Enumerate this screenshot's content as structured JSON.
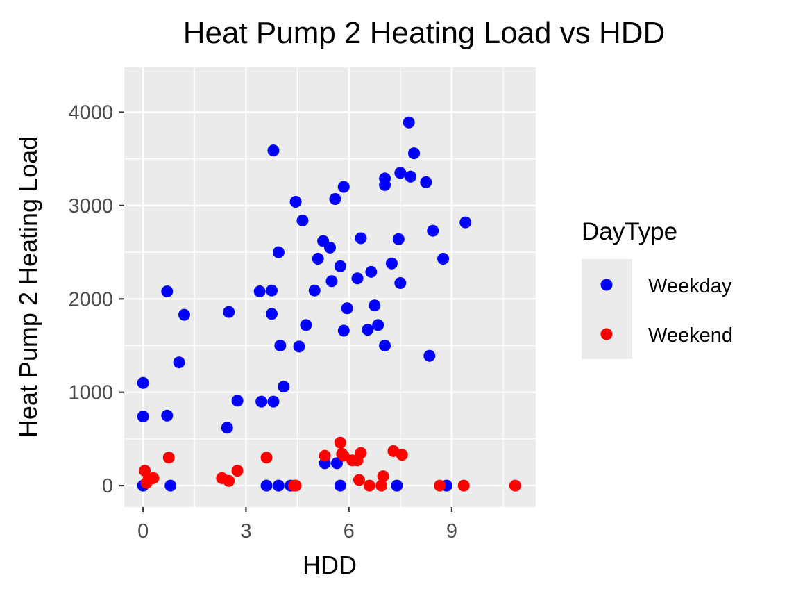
{
  "chart_data": {
    "type": "scatter",
    "title": "Heat Pump 2 Heating Load vs HDD",
    "xlabel": "HDD",
    "ylabel": "Heat Pump 2 Heating Load",
    "xlim": [
      -0.55,
      11.45
    ],
    "ylim": [
      -230,
      4480
    ],
    "x_ticks": [
      0,
      3,
      6,
      9
    ],
    "x_tick_labels": [
      "0",
      "3",
      "6",
      "9"
    ],
    "y_ticks": [
      0,
      1000,
      2000,
      3000,
      4000
    ],
    "y_tick_labels": [
      "0",
      "1000",
      "2000",
      "3000",
      "4000"
    ],
    "grid": true,
    "background": "#EBEBEB",
    "legend": {
      "title": "DayType",
      "position": "right"
    },
    "series": [
      {
        "name": "Weekday",
        "color": "#0000FF",
        "points": [
          [
            0.0,
            1100
          ],
          [
            0.0,
            740
          ],
          [
            0.0,
            0
          ],
          [
            0.7,
            750
          ],
          [
            0.7,
            2080
          ],
          [
            0.8,
            0
          ],
          [
            1.05,
            1320
          ],
          [
            1.2,
            1830
          ],
          [
            2.45,
            620
          ],
          [
            2.5,
            1860
          ],
          [
            2.75,
            910
          ],
          [
            3.4,
            2080
          ],
          [
            3.45,
            900
          ],
          [
            3.6,
            0
          ],
          [
            3.75,
            2090
          ],
          [
            3.75,
            1840
          ],
          [
            3.8,
            900
          ],
          [
            3.8,
            3590
          ],
          [
            3.95,
            0
          ],
          [
            3.95,
            2500
          ],
          [
            4.0,
            1500
          ],
          [
            4.1,
            1060
          ],
          [
            4.3,
            0
          ],
          [
            4.45,
            3040
          ],
          [
            4.55,
            1490
          ],
          [
            4.65,
            2840
          ],
          [
            4.75,
            1720
          ],
          [
            5.0,
            2090
          ],
          [
            5.1,
            2430
          ],
          [
            5.25,
            2620
          ],
          [
            5.3,
            240
          ],
          [
            5.45,
            2550
          ],
          [
            5.5,
            2190
          ],
          [
            5.6,
            3070
          ],
          [
            5.65,
            240
          ],
          [
            5.75,
            2350
          ],
          [
            5.75,
            0
          ],
          [
            5.85,
            3200
          ],
          [
            5.85,
            1660
          ],
          [
            5.95,
            1900
          ],
          [
            6.25,
            2220
          ],
          [
            6.35,
            2650
          ],
          [
            6.55,
            1670
          ],
          [
            6.65,
            2290
          ],
          [
            6.75,
            1930
          ],
          [
            6.85,
            1720
          ],
          [
            7.05,
            3290
          ],
          [
            7.05,
            3220
          ],
          [
            7.05,
            1500
          ],
          [
            7.25,
            2380
          ],
          [
            7.4,
            0
          ],
          [
            7.45,
            2640
          ],
          [
            7.5,
            2170
          ],
          [
            7.5,
            3350
          ],
          [
            7.75,
            3890
          ],
          [
            7.8,
            3310
          ],
          [
            7.9,
            3560
          ],
          [
            8.25,
            3250
          ],
          [
            8.35,
            1390
          ],
          [
            8.45,
            2730
          ],
          [
            8.75,
            2430
          ],
          [
            8.85,
            0
          ],
          [
            9.4,
            2820
          ]
        ]
      },
      {
        "name": "Weekend",
        "color": "#FF0000",
        "points": [
          [
            0.05,
            160
          ],
          [
            0.1,
            30
          ],
          [
            0.15,
            60
          ],
          [
            0.3,
            80
          ],
          [
            0.75,
            300
          ],
          [
            2.3,
            80
          ],
          [
            2.5,
            50
          ],
          [
            2.75,
            160
          ],
          [
            3.6,
            300
          ],
          [
            4.4,
            0
          ],
          [
            4.45,
            0
          ],
          [
            5.3,
            320
          ],
          [
            5.75,
            460
          ],
          [
            5.8,
            340
          ],
          [
            5.85,
            320
          ],
          [
            6.1,
            270
          ],
          [
            6.25,
            270
          ],
          [
            6.3,
            60
          ],
          [
            6.35,
            350
          ],
          [
            6.6,
            0
          ],
          [
            6.95,
            0
          ],
          [
            7.0,
            100
          ],
          [
            7.3,
            370
          ],
          [
            7.55,
            330
          ],
          [
            8.65,
            0
          ],
          [
            9.35,
            0
          ],
          [
            10.85,
            0
          ]
        ]
      }
    ]
  }
}
